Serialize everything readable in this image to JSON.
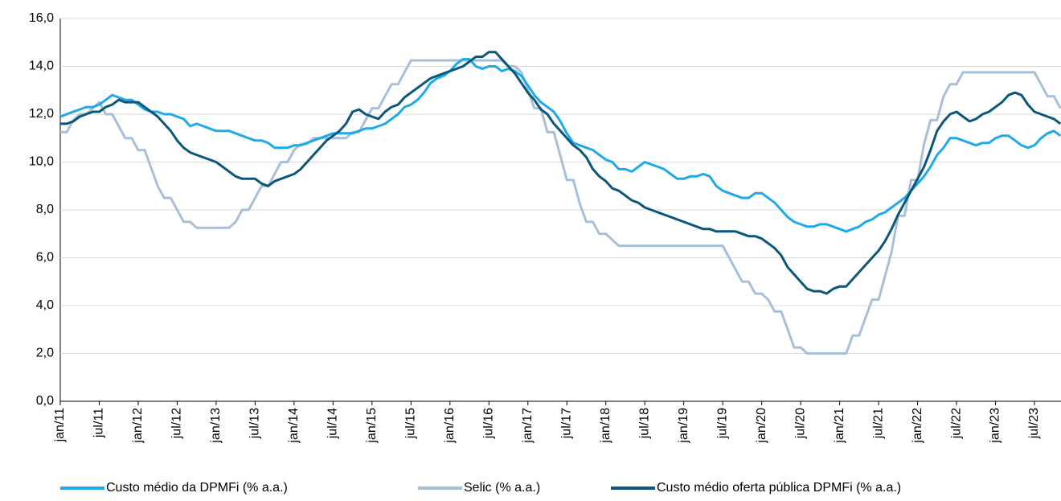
{
  "chart_data": {
    "type": "line",
    "categories": [
      "jan/11",
      null,
      null,
      null,
      null,
      null,
      "jul/11",
      null,
      null,
      null,
      null,
      null,
      "jan/12",
      null,
      null,
      null,
      null,
      null,
      "jul/12",
      null,
      null,
      null,
      null,
      null,
      "jan/13",
      null,
      null,
      null,
      null,
      null,
      "jul/13",
      null,
      null,
      null,
      null,
      null,
      "jan/14",
      null,
      null,
      null,
      null,
      null,
      "jul/14",
      null,
      null,
      null,
      null,
      null,
      "jan/15",
      null,
      null,
      null,
      null,
      null,
      "jul/15",
      null,
      null,
      null,
      null,
      null,
      "jan/16",
      null,
      null,
      null,
      null,
      null,
      "jul/16",
      null,
      null,
      null,
      null,
      null,
      "jan/17",
      null,
      null,
      null,
      null,
      null,
      "jul/17",
      null,
      null,
      null,
      null,
      null,
      "jan/18",
      null,
      null,
      null,
      null,
      null,
      "jul/18",
      null,
      null,
      null,
      null,
      null,
      "jan/19",
      null,
      null,
      null,
      null,
      null,
      "jul/19",
      null,
      null,
      null,
      null,
      null,
      "jan/20",
      null,
      null,
      null,
      null,
      null,
      "jul/20",
      null,
      null,
      null,
      null,
      null,
      "jan/21",
      null,
      null,
      null,
      null,
      null,
      "jul/21",
      null,
      null,
      null,
      null,
      null,
      "jan/22",
      null,
      null,
      null,
      null,
      null,
      "jul/22",
      null,
      null,
      null,
      null,
      null,
      "jan/23",
      null,
      null,
      null,
      null,
      null,
      "jul/23",
      null,
      null,
      null,
      null
    ],
    "series": [
      {
        "name": "Custo médio da DPMFi (% a.a.)",
        "color": "#1eaaea",
        "values": [
          11.9,
          12.0,
          12.1,
          12.2,
          12.3,
          12.3,
          12.4,
          12.6,
          12.8,
          12.7,
          12.6,
          12.6,
          12.4,
          12.2,
          12.1,
          12.1,
          12.0,
          12.0,
          11.9,
          11.8,
          11.5,
          11.6,
          11.5,
          11.4,
          11.3,
          11.3,
          11.3,
          11.2,
          11.1,
          11.0,
          10.9,
          10.9,
          10.8,
          10.6,
          10.6,
          10.6,
          10.7,
          10.7,
          10.8,
          10.9,
          11.0,
          11.1,
          11.2,
          11.2,
          11.2,
          11.2,
          11.3,
          11.4,
          11.4,
          11.5,
          11.6,
          11.8,
          12.0,
          12.3,
          12.4,
          12.6,
          12.9,
          13.3,
          13.5,
          13.6,
          13.8,
          14.1,
          14.3,
          14.3,
          14.0,
          13.9,
          14.0,
          14.0,
          13.8,
          13.9,
          13.8,
          13.6,
          13.2,
          12.8,
          12.5,
          12.3,
          12.1,
          11.7,
          11.2,
          10.8,
          10.7,
          10.6,
          10.5,
          10.3,
          10.1,
          10.0,
          9.7,
          9.7,
          9.6,
          9.8,
          10.0,
          9.9,
          9.8,
          9.7,
          9.5,
          9.3,
          9.3,
          9.4,
          9.4,
          9.5,
          9.4,
          9.0,
          8.8,
          8.7,
          8.6,
          8.5,
          8.5,
          8.7,
          8.7,
          8.5,
          8.3,
          8.0,
          7.7,
          7.5,
          7.4,
          7.3,
          7.3,
          7.4,
          7.4,
          7.3,
          7.2,
          7.1,
          7.2,
          7.3,
          7.5,
          7.6,
          7.8,
          7.9,
          8.1,
          8.3,
          8.5,
          8.8,
          9.1,
          9.4,
          9.8,
          10.3,
          10.6,
          11.0,
          11.0,
          10.9,
          10.8,
          10.7,
          10.8,
          10.8,
          11.0,
          11.1,
          11.1,
          10.9,
          10.7,
          10.6,
          10.7,
          11.0,
          11.2,
          11.3,
          11.1
        ]
      },
      {
        "name": "Selic (% a.a.)",
        "color": "#a7c0d8",
        "values": [
          11.25,
          11.25,
          11.75,
          12.0,
          12.0,
          12.25,
          12.5,
          12.0,
          12.0,
          11.5,
          11.0,
          11.0,
          10.5,
          10.5,
          9.75,
          9.0,
          8.5,
          8.5,
          8.0,
          7.5,
          7.5,
          7.25,
          7.25,
          7.25,
          7.25,
          7.25,
          7.25,
          7.5,
          8.0,
          8.0,
          8.5,
          9.0,
          9.0,
          9.5,
          10.0,
          10.0,
          10.5,
          10.75,
          10.75,
          11.0,
          11.0,
          11.0,
          11.0,
          11.0,
          11.0,
          11.25,
          11.25,
          11.75,
          12.25,
          12.25,
          12.75,
          13.25,
          13.25,
          13.75,
          14.25,
          14.25,
          14.25,
          14.25,
          14.25,
          14.25,
          14.25,
          14.25,
          14.25,
          14.25,
          14.25,
          14.25,
          14.25,
          14.25,
          14.25,
          14.0,
          14.0,
          13.75,
          13.0,
          12.25,
          12.25,
          11.25,
          11.25,
          10.25,
          9.25,
          9.25,
          8.25,
          7.5,
          7.5,
          7.0,
          7.0,
          6.75,
          6.5,
          6.5,
          6.5,
          6.5,
          6.5,
          6.5,
          6.5,
          6.5,
          6.5,
          6.5,
          6.5,
          6.5,
          6.5,
          6.5,
          6.5,
          6.5,
          6.5,
          6.0,
          5.5,
          5.0,
          5.0,
          4.5,
          4.5,
          4.25,
          3.75,
          3.75,
          3.0,
          2.25,
          2.25,
          2.0,
          2.0,
          2.0,
          2.0,
          2.0,
          2.0,
          2.0,
          2.75,
          2.75,
          3.5,
          4.25,
          4.25,
          5.25,
          6.25,
          7.75,
          7.75,
          9.25,
          9.25,
          10.75,
          11.75,
          11.75,
          12.75,
          13.25,
          13.25,
          13.75,
          13.75,
          13.75,
          13.75,
          13.75,
          13.75,
          13.75,
          13.75,
          13.75,
          13.75,
          13.75,
          13.75,
          13.25,
          12.75,
          12.75,
          12.25
        ]
      },
      {
        "name": "Custo médio oferta pública DPMFi (% a.a.)",
        "color": "#0b5779",
        "values": [
          11.6,
          11.6,
          11.7,
          11.9,
          12.0,
          12.1,
          12.1,
          12.3,
          12.4,
          12.6,
          12.5,
          12.5,
          12.5,
          12.3,
          12.1,
          11.9,
          11.6,
          11.3,
          10.9,
          10.6,
          10.4,
          10.3,
          10.2,
          10.1,
          10.0,
          9.8,
          9.6,
          9.4,
          9.3,
          9.3,
          9.3,
          9.1,
          9.0,
          9.2,
          9.3,
          9.4,
          9.5,
          9.7,
          10.0,
          10.3,
          10.6,
          10.9,
          11.1,
          11.3,
          11.6,
          12.1,
          12.2,
          12.0,
          11.9,
          11.8,
          12.1,
          12.3,
          12.4,
          12.7,
          12.9,
          13.1,
          13.3,
          13.5,
          13.6,
          13.7,
          13.8,
          13.9,
          14.0,
          14.2,
          14.4,
          14.4,
          14.6,
          14.6,
          14.3,
          14.0,
          13.7,
          13.3,
          12.9,
          12.6,
          12.2,
          12.0,
          11.6,
          11.3,
          11.0,
          10.7,
          10.5,
          10.2,
          9.7,
          9.4,
          9.2,
          8.9,
          8.8,
          8.6,
          8.4,
          8.3,
          8.1,
          8.0,
          7.9,
          7.8,
          7.7,
          7.6,
          7.5,
          7.4,
          7.3,
          7.2,
          7.2,
          7.1,
          7.1,
          7.1,
          7.1,
          7.0,
          6.9,
          6.9,
          6.8,
          6.6,
          6.4,
          6.1,
          5.6,
          5.3,
          5.0,
          4.7,
          4.6,
          4.6,
          4.5,
          4.7,
          4.8,
          4.8,
          5.1,
          5.4,
          5.7,
          6.0,
          6.3,
          6.7,
          7.2,
          7.8,
          8.3,
          8.8,
          9.3,
          9.8,
          10.5,
          11.3,
          11.7,
          12.0,
          12.1,
          11.9,
          11.7,
          11.8,
          12.0,
          12.1,
          12.3,
          12.5,
          12.8,
          12.9,
          12.8,
          12.4,
          12.1,
          12.0,
          11.9,
          11.8,
          11.6
        ]
      }
    ],
    "ylim": [
      0,
      16
    ],
    "yticks": [
      {
        "value": 0,
        "label": "0,0"
      },
      {
        "value": 2,
        "label": "2,0"
      },
      {
        "value": 4,
        "label": "4,0"
      },
      {
        "value": 6,
        "label": "6,0"
      },
      {
        "value": 8,
        "label": "8,0"
      },
      {
        "value": 10,
        "label": "10,0"
      },
      {
        "value": 12,
        "label": "12,0"
      },
      {
        "value": 14,
        "label": "14,0"
      },
      {
        "value": 16,
        "label": "16,0"
      }
    ],
    "grid": true,
    "legend": "bottom"
  }
}
